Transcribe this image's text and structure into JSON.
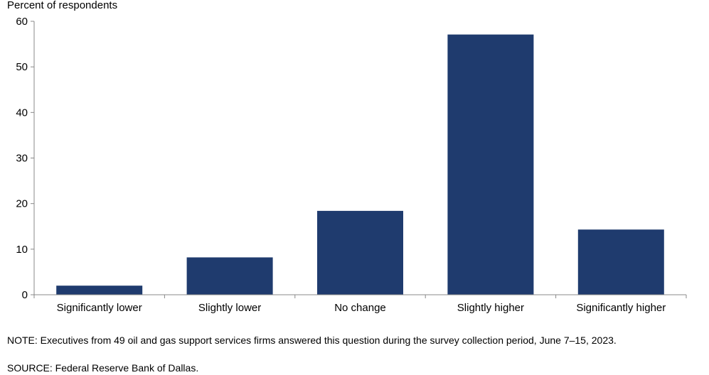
{
  "chart_data": {
    "type": "bar",
    "ylabel": "Percent of respondents",
    "categories": [
      "Significantly lower",
      "Slightly lower",
      "No change",
      "Slightly higher",
      "Significantly higher"
    ],
    "values": [
      2.0,
      8.2,
      18.4,
      57.1,
      14.3
    ],
    "ylim": [
      0,
      60
    ],
    "yticks": [
      0,
      10,
      20,
      30,
      40,
      50,
      60
    ],
    "grid": false,
    "bar_color": "#1f3b6e"
  },
  "footnotes": {
    "note": "NOTE:  Executives  from  49  oil  and  gas  support  services  firms  answered  this  question  during  the  survey  collection  period,  June 7–15, 2023.",
    "source": "SOURCE:  Federal  Reserve  Bank  of  Dallas."
  }
}
